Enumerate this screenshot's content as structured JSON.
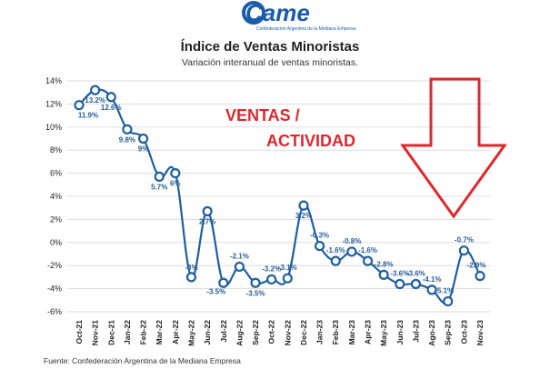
{
  "logo": {
    "text": "Came",
    "subtext": "Confederación Argentina de la Mediana Empresa"
  },
  "title": "Índice de Ventas Minoristas",
  "subtitle": "Variación interanual de ventas minoristas.",
  "source": "Fuente: Confederación Argentina de la Mediana Empresa",
  "annotations": {
    "line1": "VENTAS   /",
    "line2": "ACTIVIDAD"
  },
  "colors": {
    "line": "#1f5f9e",
    "marker_fill": "#ffffff",
    "arrow": "#e0272d",
    "grid": "#dddddd"
  },
  "chart_data": {
    "type": "line",
    "title": "Índice de Ventas Minoristas",
    "subtitle": "Variación interanual de ventas minoristas.",
    "xlabel": "",
    "ylabel": "",
    "ylim": [
      -6,
      14
    ],
    "yticks": [
      "-6%",
      "-4%",
      "-2%",
      "0%",
      "2%",
      "4%",
      "6%",
      "8%",
      "10%",
      "12%",
      "14%"
    ],
    "grid": true,
    "categories": [
      "Oct-21",
      "Nov-21",
      "Dec-21",
      "Jan-22",
      "Feb-22",
      "Mar-22",
      "Apr-22",
      "May-22",
      "Jun-22",
      "Jul-22",
      "Aug-22",
      "Sep-22",
      "Oct-22",
      "Nov-22",
      "Dec-22",
      "Jan-23",
      "Feb-23",
      "Mar-23",
      "Apr-23",
      "May-23",
      "Jun-23",
      "Jul-23",
      "Ago-23",
      "Sep-23",
      "Oct-23",
      "Nov-23"
    ],
    "series": [
      {
        "values": [
          11.9,
          13.2,
          12.6,
          9.8,
          9,
          5.7,
          6,
          -3,
          2.7,
          -3.5,
          -2.1,
          -3.5,
          -3.2,
          -3.1,
          3.2,
          -0.3,
          -1.6,
          -0.8,
          -1.6,
          -2.8,
          -3.6,
          -3.6,
          -4.1,
          -5.1,
          -0.7,
          -2.9
        ],
        "labels": [
          "11.9%",
          "13.2%",
          "12.6%",
          "9.8%",
          "9%",
          "5.7%",
          "6%",
          "-3%",
          "2.7%",
          "-3.5%",
          "-2.1%",
          "-3.5%",
          "-3.2%",
          "-3.1%",
          "3.2%",
          "-0.3%",
          "-1.6%",
          "-0.8%",
          "-1.6%",
          "-2.8%",
          "-3.6%",
          "-3.6%",
          "-4.1%",
          "-5.1%",
          "-0.7%",
          "-2.9%"
        ]
      }
    ]
  }
}
